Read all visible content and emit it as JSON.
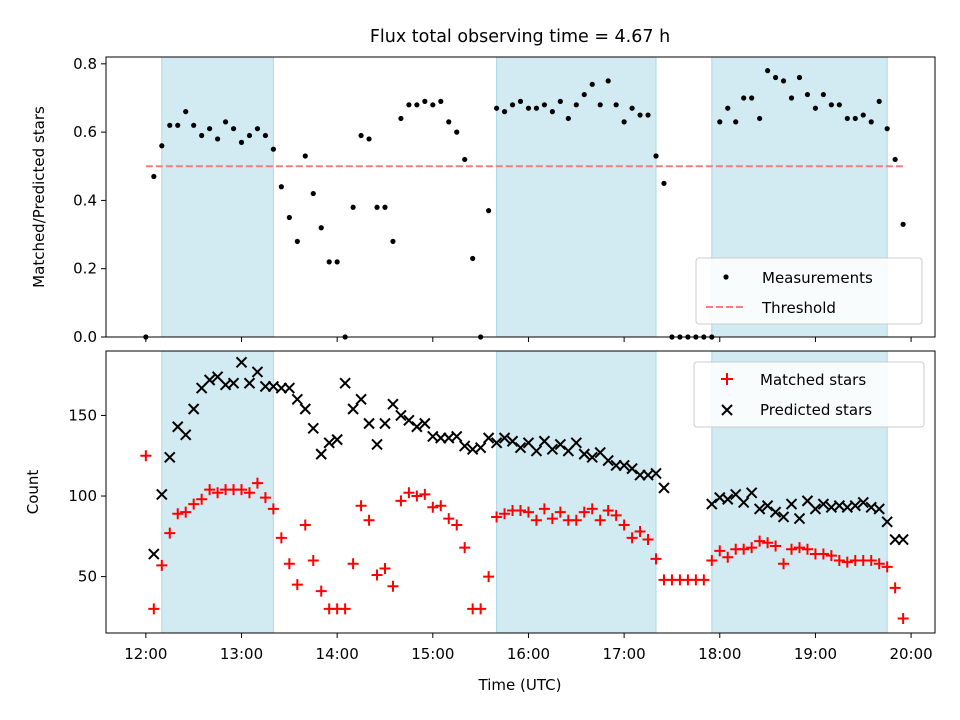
{
  "chart_data": [
    {
      "type": "scatter",
      "title": "Flux total observing time = 4.67 h",
      "xlabel": "",
      "ylabel": "Matched/Predicted stars",
      "xlim": [
        "11:35",
        "20:15"
      ],
      "ylim": [
        0,
        0.82
      ],
      "yticks": [
        0.0,
        0.2,
        0.4,
        0.6,
        0.8
      ],
      "ytick_labels": [
        "0.0",
        "0.2",
        "0.4",
        "0.6",
        "0.8"
      ],
      "grid": false,
      "legend": "lower-right",
      "shaded_intervals": [
        [
          "12:10",
          "13:20"
        ],
        [
          "15:40",
          "17:20"
        ],
        [
          "17:55",
          "19:45"
        ]
      ],
      "shade_color": "#add8e6",
      "threshold": {
        "name": "Threshold",
        "value": 0.5,
        "x": [
          "12:00",
          "19:55"
        ],
        "color": "#f08080"
      },
      "series": [
        {
          "name": "Measurements",
          "color": "#000000",
          "x": [
            "12:00",
            "12:05",
            "12:10",
            "12:15",
            "12:20",
            "12:25",
            "12:30",
            "12:35",
            "12:40",
            "12:45",
            "12:50",
            "12:55",
            "13:00",
            "13:05",
            "13:10",
            "13:15",
            "13:20",
            "13:25",
            "13:30",
            "13:35",
            "13:40",
            "13:45",
            "13:50",
            "13:55",
            "14:00",
            "14:05",
            "14:10",
            "14:15",
            "14:20",
            "14:25",
            "14:30",
            "14:35",
            "14:40",
            "14:45",
            "14:50",
            "14:55",
            "15:00",
            "15:05",
            "15:10",
            "15:15",
            "15:20",
            "15:25",
            "15:30",
            "15:35",
            "15:40",
            "15:45",
            "15:50",
            "15:55",
            "16:00",
            "16:05",
            "16:10",
            "16:15",
            "16:20",
            "16:25",
            "16:30",
            "16:35",
            "16:40",
            "16:45",
            "16:50",
            "16:55",
            "17:00",
            "17:05",
            "17:10",
            "17:15",
            "17:20",
            "17:25",
            "17:30",
            "17:35",
            "17:40",
            "17:45",
            "17:50",
            "17:55",
            "18:00",
            "18:05",
            "18:10",
            "18:15",
            "18:20",
            "18:25",
            "18:30",
            "18:35",
            "18:40",
            "18:45",
            "18:50",
            "18:55",
            "19:00",
            "19:05",
            "19:10",
            "19:15",
            "19:20",
            "19:25",
            "19:30",
            "19:35",
            "19:40",
            "19:45",
            "19:50",
            "19:55"
          ],
          "values": [
            0.0,
            0.47,
            0.56,
            0.62,
            0.62,
            0.66,
            0.62,
            0.59,
            0.61,
            0.58,
            0.63,
            0.61,
            0.57,
            0.59,
            0.61,
            0.59,
            0.55,
            0.44,
            0.35,
            0.28,
            0.53,
            0.42,
            0.32,
            0.22,
            0.22,
            0.0,
            0.38,
            0.59,
            0.58,
            0.38,
            0.38,
            0.28,
            0.64,
            0.68,
            0.68,
            0.69,
            0.68,
            0.69,
            0.63,
            0.6,
            0.52,
            0.23,
            0.0,
            0.37,
            0.67,
            0.66,
            0.68,
            0.69,
            0.67,
            0.67,
            0.68,
            0.66,
            0.69,
            0.64,
            0.68,
            0.71,
            0.74,
            0.68,
            0.75,
            0.68,
            0.63,
            0.67,
            0.65,
            0.65,
            0.53,
            0.45,
            0.0,
            0.0,
            0.0,
            0.0,
            0.0,
            0.0,
            0.63,
            0.67,
            0.63,
            0.7,
            0.7,
            0.64,
            0.78,
            0.76,
            0.75,
            0.7,
            0.76,
            0.71,
            0.67,
            0.71,
            0.68,
            0.68,
            0.64,
            0.64,
            0.65,
            0.63,
            0.69,
            0.61,
            0.52,
            0.33
          ]
        }
      ]
    },
    {
      "type": "scatter",
      "title": "",
      "xlabel": "Time (UTC)",
      "ylabel": "Count",
      "xlim": [
        "11:35",
        "20:15"
      ],
      "ylim": [
        15,
        190
      ],
      "xticks": [
        "12:00",
        "13:00",
        "14:00",
        "15:00",
        "16:00",
        "17:00",
        "18:00",
        "19:00",
        "20:00"
      ],
      "yticks": [
        50,
        100,
        150
      ],
      "grid": false,
      "legend": "upper-right",
      "series": [
        {
          "name": "Matched stars",
          "color": "#ff0000",
          "marker": "+",
          "x": [
            "12:00",
            "12:05",
            "12:10",
            "12:15",
            "12:20",
            "12:25",
            "12:30",
            "12:35",
            "12:40",
            "12:45",
            "12:50",
            "12:55",
            "13:00",
            "13:05",
            "13:10",
            "13:15",
            "13:20",
            "13:25",
            "13:30",
            "13:35",
            "13:40",
            "13:45",
            "13:50",
            "13:55",
            "14:00",
            "14:05",
            "14:10",
            "14:15",
            "14:20",
            "14:25",
            "14:30",
            "14:35",
            "14:40",
            "14:45",
            "14:50",
            "14:55",
            "15:00",
            "15:05",
            "15:10",
            "15:15",
            "15:20",
            "15:25",
            "15:30",
            "15:35",
            "15:40",
            "15:45",
            "15:50",
            "15:55",
            "16:00",
            "16:05",
            "16:10",
            "16:15",
            "16:20",
            "16:25",
            "16:30",
            "16:35",
            "16:40",
            "16:45",
            "16:50",
            "16:55",
            "17:00",
            "17:05",
            "17:10",
            "17:15",
            "17:20",
            "17:25",
            "17:30",
            "17:35",
            "17:40",
            "17:45",
            "17:50",
            "17:55",
            "18:00",
            "18:05",
            "18:10",
            "18:15",
            "18:20",
            "18:25",
            "18:30",
            "18:35",
            "18:40",
            "18:45",
            "18:50",
            "18:55",
            "19:00",
            "19:05",
            "19:10",
            "19:15",
            "19:20",
            "19:25",
            "19:30",
            "19:35",
            "19:40",
            "19:45",
            "19:50",
            "19:55"
          ],
          "values": [
            125,
            30,
            57,
            77,
            89,
            90,
            95,
            98,
            104,
            102,
            104,
            104,
            104,
            102,
            108,
            99,
            92,
            74,
            58,
            45,
            82,
            60,
            41,
            30,
            30,
            30,
            58,
            94,
            85,
            51,
            55,
            44,
            97,
            102,
            100,
            101,
            93,
            94,
            86,
            82,
            68,
            30,
            30,
            50,
            87,
            89,
            91,
            91,
            90,
            85,
            92,
            86,
            90,
            85,
            85,
            90,
            92,
            85,
            91,
            88,
            82,
            74,
            78,
            73,
            61,
            48,
            48,
            48,
            48,
            48,
            48,
            60,
            66,
            62,
            67,
            67,
            68,
            72,
            71,
            69,
            58,
            67,
            68,
            67,
            64,
            64,
            63,
            60,
            59,
            60,
            60,
            60,
            58,
            56,
            43,
            24
          ]
        },
        {
          "name": "Predicted stars",
          "color": "#000000",
          "marker": "x",
          "x": [
            "12:05",
            "12:10",
            "12:15",
            "12:20",
            "12:25",
            "12:30",
            "12:35",
            "12:40",
            "12:45",
            "12:50",
            "12:55",
            "13:00",
            "13:05",
            "13:10",
            "13:15",
            "13:20",
            "13:25",
            "13:30",
            "13:35",
            "13:40",
            "13:45",
            "13:50",
            "13:55",
            "14:00",
            "14:05",
            "14:10",
            "14:15",
            "14:20",
            "14:25",
            "14:30",
            "14:35",
            "14:40",
            "14:45",
            "14:50",
            "14:55",
            "15:00",
            "15:05",
            "15:10",
            "15:15",
            "15:20",
            "15:25",
            "15:30",
            "15:35",
            "15:40",
            "15:45",
            "15:50",
            "15:55",
            "16:00",
            "16:05",
            "16:10",
            "16:15",
            "16:20",
            "16:25",
            "16:30",
            "16:35",
            "16:40",
            "16:45",
            "16:50",
            "16:55",
            "17:00",
            "17:05",
            "17:10",
            "17:15",
            "17:20",
            "17:25",
            "17:55",
            "18:00",
            "18:05",
            "18:10",
            "18:15",
            "18:20",
            "18:25",
            "18:30",
            "18:35",
            "18:40",
            "18:45",
            "18:50",
            "18:55",
            "19:00",
            "19:05",
            "19:10",
            "19:15",
            "19:20",
            "19:25",
            "19:30",
            "19:35",
            "19:40",
            "19:45",
            "19:50",
            "19:55"
          ],
          "values": [
            64,
            101,
            124,
            143,
            138,
            154,
            167,
            172,
            174,
            169,
            170,
            183,
            170,
            177,
            168,
            168,
            167,
            167,
            160,
            154,
            142,
            126,
            133,
            135,
            170,
            154,
            160,
            145,
            132,
            145,
            157,
            150,
            147,
            143,
            145,
            137,
            136,
            136,
            137,
            131,
            129,
            130,
            136,
            133,
            136,
            134,
            130,
            133,
            128,
            134,
            129,
            132,
            128,
            133,
            126,
            124,
            127,
            122,
            119,
            119,
            117,
            113,
            113,
            114,
            105,
            95,
            99,
            98,
            101,
            96,
            102,
            92,
            94,
            90,
            87,
            95,
            86,
            97,
            92,
            95,
            93,
            94,
            93,
            94,
            96,
            93,
            92,
            84,
            73,
            73
          ]
        }
      ]
    }
  ]
}
